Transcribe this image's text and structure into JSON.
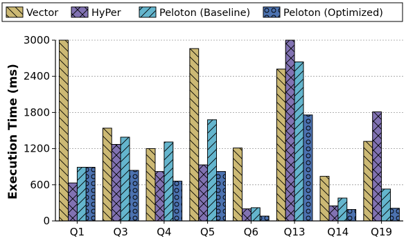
{
  "chart_data": {
    "type": "bar",
    "title": "",
    "xlabel": "",
    "ylabel": "Execution Time (ms)",
    "ylim": [
      0,
      3000
    ],
    "yticks": [
      0,
      600,
      1200,
      1800,
      2400,
      3000
    ],
    "grid": true,
    "legend_position": "top",
    "categories": [
      "Q1",
      "Q3",
      "Q4",
      "Q5",
      "Q6",
      "Q13",
      "Q14",
      "Q19"
    ],
    "series": [
      {
        "name": "Vector",
        "color": "#ccb974",
        "hatch": "backslash",
        "values": [
          3000,
          1540,
          1200,
          2860,
          1210,
          2520,
          740,
          1320
        ]
      },
      {
        "name": "HyPer",
        "color": "#8172b2",
        "hatch": "cross",
        "values": [
          630,
          1270,
          820,
          930,
          200,
          3000,
          250,
          1810
        ]
      },
      {
        "name": "Peloton (Baseline)",
        "color": "#64b5cd",
        "hatch": "slash",
        "values": [
          890,
          1390,
          1310,
          1680,
          220,
          2640,
          380,
          530
        ]
      },
      {
        "name": "Peloton (Optimized)",
        "color": "#4c72b0",
        "hatch": "circles",
        "values": [
          890,
          840,
          660,
          820,
          80,
          1760,
          190,
          210
        ]
      }
    ]
  }
}
